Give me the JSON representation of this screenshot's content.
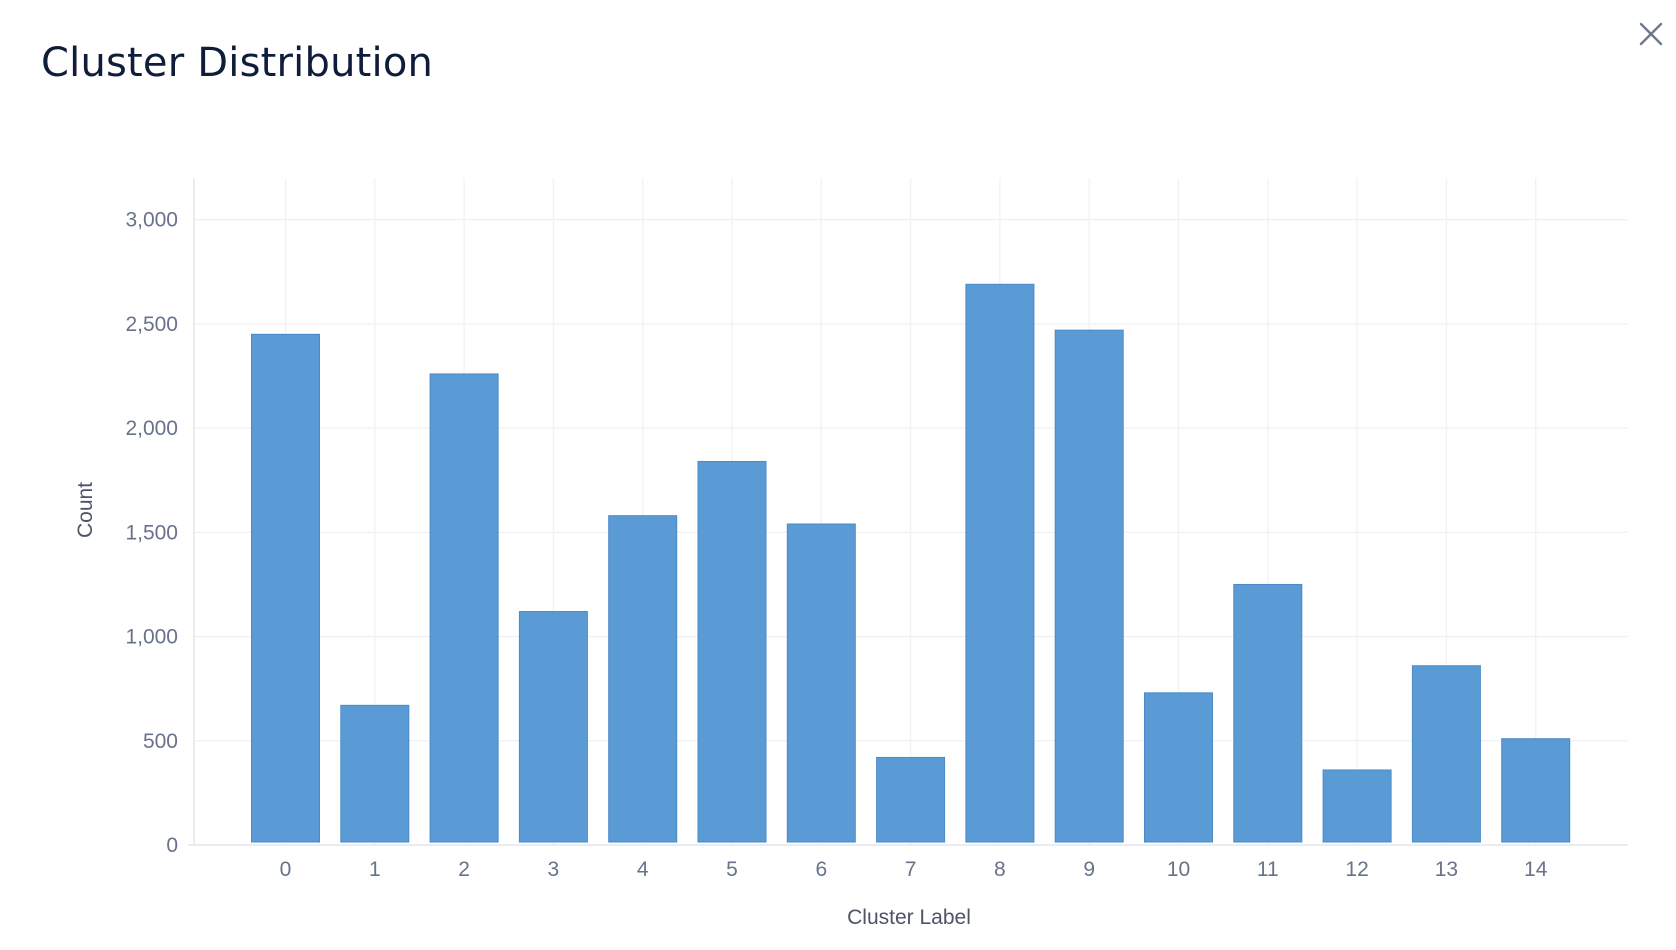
{
  "dialog": {
    "title": "Cluster Distribution",
    "close_icon": "close-icon"
  },
  "chart_data": {
    "type": "bar",
    "title": "Cluster Distribution",
    "xlabel": "Cluster Label",
    "ylabel": "Count",
    "categories": [
      "0",
      "1",
      "2",
      "3",
      "4",
      "5",
      "6",
      "7",
      "8",
      "9",
      "10",
      "11",
      "12",
      "13",
      "14"
    ],
    "values": [
      2450,
      670,
      2260,
      1120,
      1580,
      1840,
      1540,
      420,
      2690,
      2470,
      730,
      1250,
      360,
      860,
      510
    ],
    "ylim": [
      0,
      3200
    ],
    "yticks": [
      0,
      500,
      1000,
      1500,
      2000,
      2500,
      3000
    ],
    "ytick_labels": [
      "0",
      "500",
      "1,000",
      "1,500",
      "2,000",
      "2,500",
      "3,000"
    ],
    "grid": true,
    "bar_color": "#5b9bd5"
  }
}
